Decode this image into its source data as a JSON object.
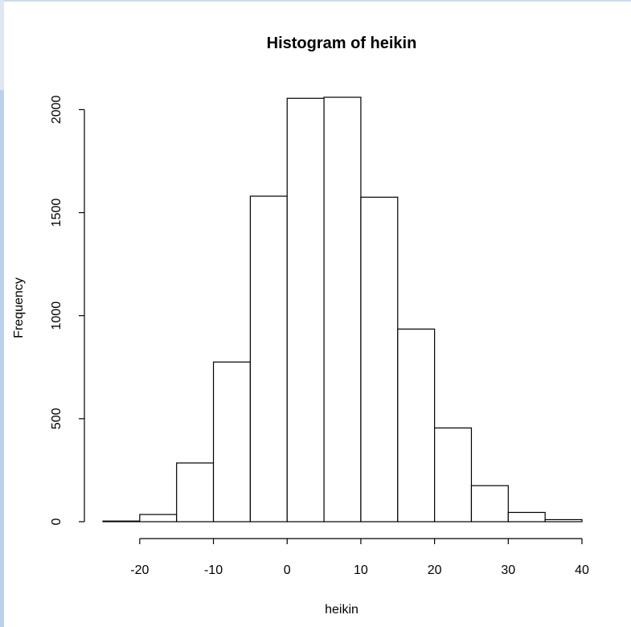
{
  "colors": {
    "background": "#ffffff",
    "bar_fill": "#ffffff",
    "bar_stroke": "#000000",
    "left_edge_top": "#dde8f4",
    "left_edge_bottom": "#b9d1ea",
    "top_edge": "#c9dcef"
  },
  "chart_data": {
    "type": "bar",
    "title": "Histogram of heikin",
    "xlabel": "heikin",
    "ylabel": "Frequency",
    "bins": [
      {
        "from": -25,
        "to": -20,
        "count": 3
      },
      {
        "from": -20,
        "to": -15,
        "count": 35
      },
      {
        "from": -15,
        "to": -10,
        "count": 285
      },
      {
        "from": -10,
        "to": -5,
        "count": 775
      },
      {
        "from": -5,
        "to": 0,
        "count": 1580
      },
      {
        "from": 0,
        "to": 5,
        "count": 2055
      },
      {
        "from": 5,
        "to": 10,
        "count": 2060
      },
      {
        "from": 10,
        "to": 15,
        "count": 1575
      },
      {
        "from": 15,
        "to": 20,
        "count": 935
      },
      {
        "from": 20,
        "to": 25,
        "count": 455
      },
      {
        "from": 25,
        "to": 30,
        "count": 175
      },
      {
        "from": 30,
        "to": 35,
        "count": 45
      },
      {
        "from": 35,
        "to": 40,
        "count": 10
      }
    ],
    "xlim": [
      -25,
      40
    ],
    "ylim": [
      0,
      2060
    ],
    "xticks": [
      -20,
      -10,
      0,
      10,
      20,
      30,
      40
    ],
    "xtick_labels": [
      "-20",
      "-10",
      "0",
      "10",
      "20",
      "30",
      "40"
    ],
    "yticks": [
      0,
      500,
      1000,
      1500,
      2000
    ],
    "ytick_labels": [
      "0",
      "500",
      "1000",
      "1500",
      "2000"
    ],
    "grid": false,
    "legend": "none"
  }
}
